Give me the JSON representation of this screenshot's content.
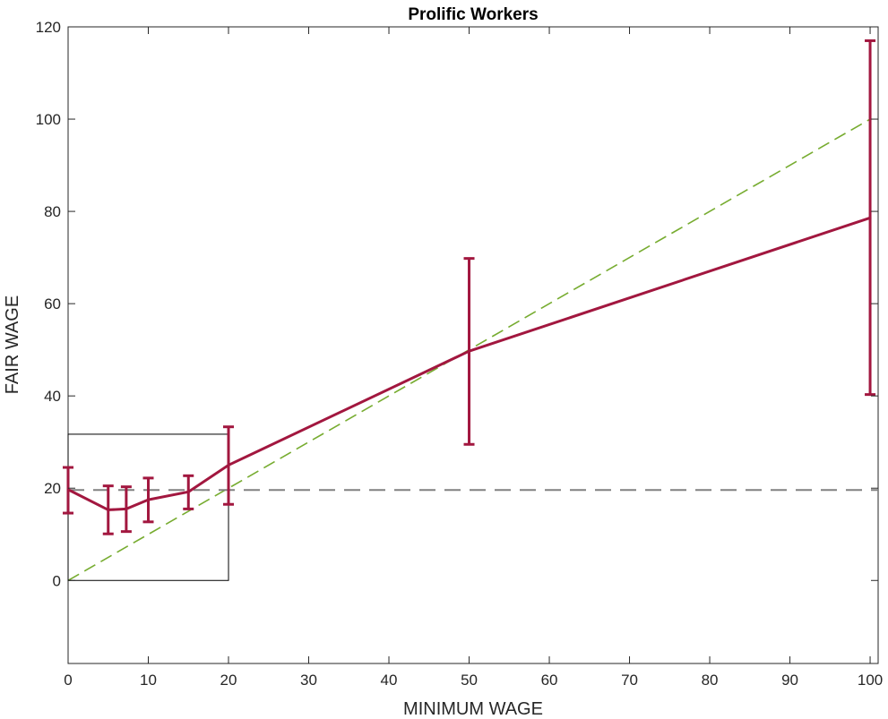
{
  "chart_data": {
    "type": "line",
    "title": "Prolific Workers",
    "xlabel": "MINIMUM WAGE",
    "ylabel": "FAIR WAGE",
    "xlim": [
      0,
      101
    ],
    "ylim": [
      -18,
      120
    ],
    "xticks": [
      0,
      10,
      20,
      30,
      40,
      50,
      60,
      70,
      80,
      90,
      100
    ],
    "yticks": [
      0,
      20,
      40,
      60,
      80,
      100,
      120
    ],
    "grid": false,
    "legend": "none",
    "series": [
      {
        "x": [
          0,
          5,
          7.25,
          10,
          15,
          20,
          50,
          100
        ],
        "values": [
          19.7,
          15.3,
          15.5,
          17.5,
          19.2,
          25.0,
          49.7,
          78.6
        ],
        "lower": [
          14.6,
          10.1,
          10.6,
          12.7,
          15.5,
          16.5,
          29.5,
          40.3
        ],
        "upper": [
          24.5,
          20.5,
          20.3,
          22.2,
          22.7,
          33.3,
          69.8,
          117.0
        ],
        "color": "#a2173f"
      }
    ],
    "reference_lines": [
      {
        "kind": "identity",
        "x": [
          0,
          100
        ],
        "y": [
          0,
          100
        ],
        "color": "#77ac30",
        "style": "dashed"
      },
      {
        "kind": "horizontal",
        "y": 19.6,
        "color": "#808080",
        "style": "dashed"
      }
    ],
    "inset_box": {
      "x": [
        0,
        20
      ],
      "y": [
        0,
        31.7
      ],
      "color": "#000000"
    }
  }
}
